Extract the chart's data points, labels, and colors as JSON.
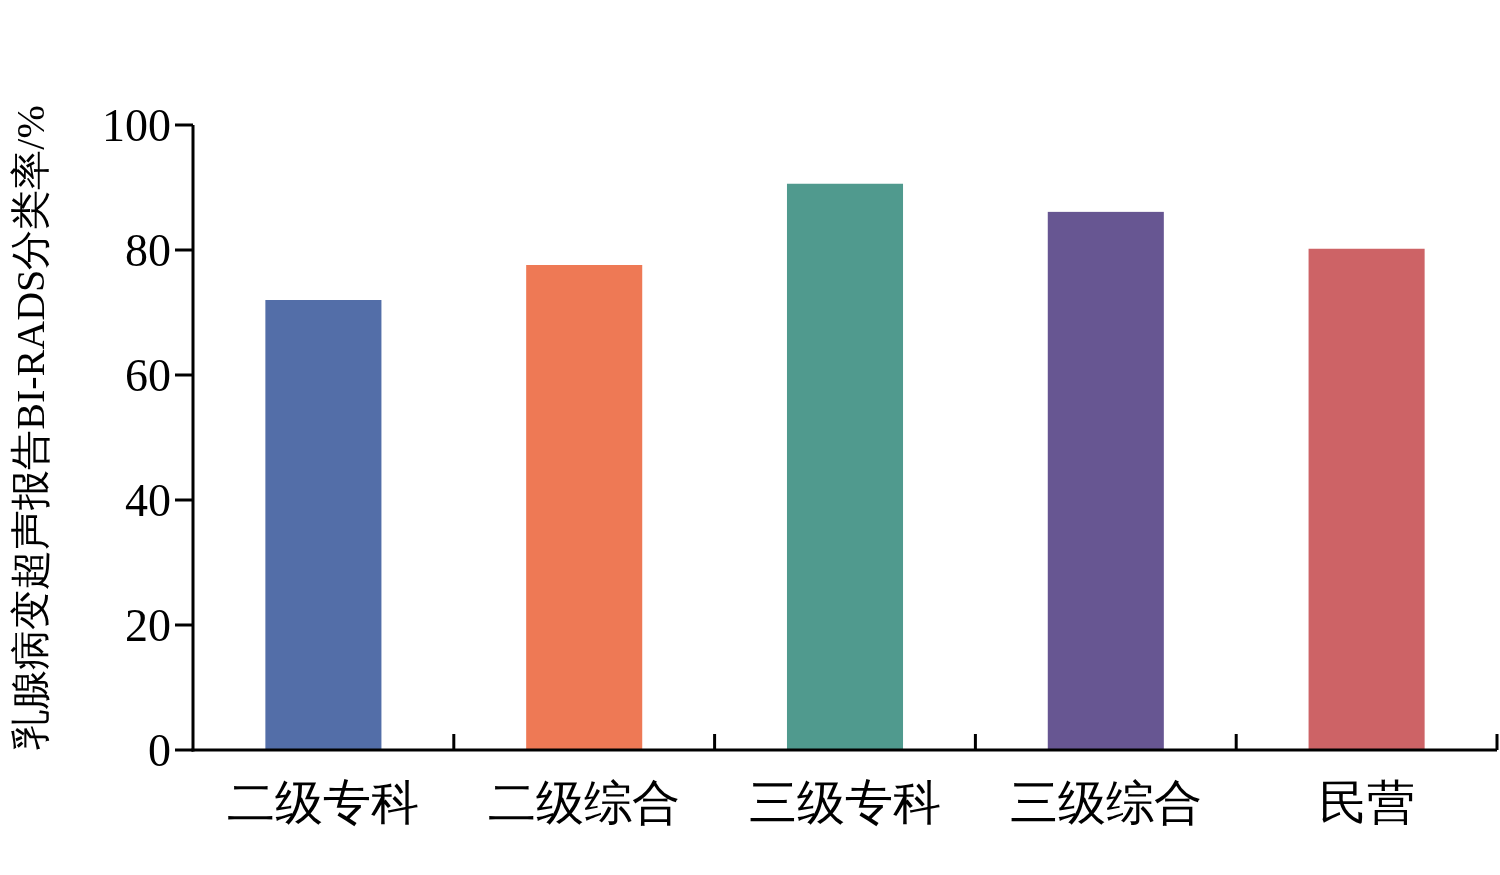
{
  "chart_data": {
    "type": "bar",
    "ylabel": "乳腺病变超声报告BI-RADS分类率/%",
    "categories": [
      "二级专科",
      "二级综合",
      "三级专科",
      "三级综合",
      "民营"
    ],
    "values": [
      72,
      77.6,
      90.6,
      86.1,
      80.2
    ],
    "colors": [
      "#536ea8",
      "#ee7955",
      "#509a8e",
      "#675692",
      "#cd6366"
    ],
    "ylim": [
      0,
      100
    ],
    "yticks": [
      0,
      20,
      40,
      60,
      80,
      100
    ]
  }
}
